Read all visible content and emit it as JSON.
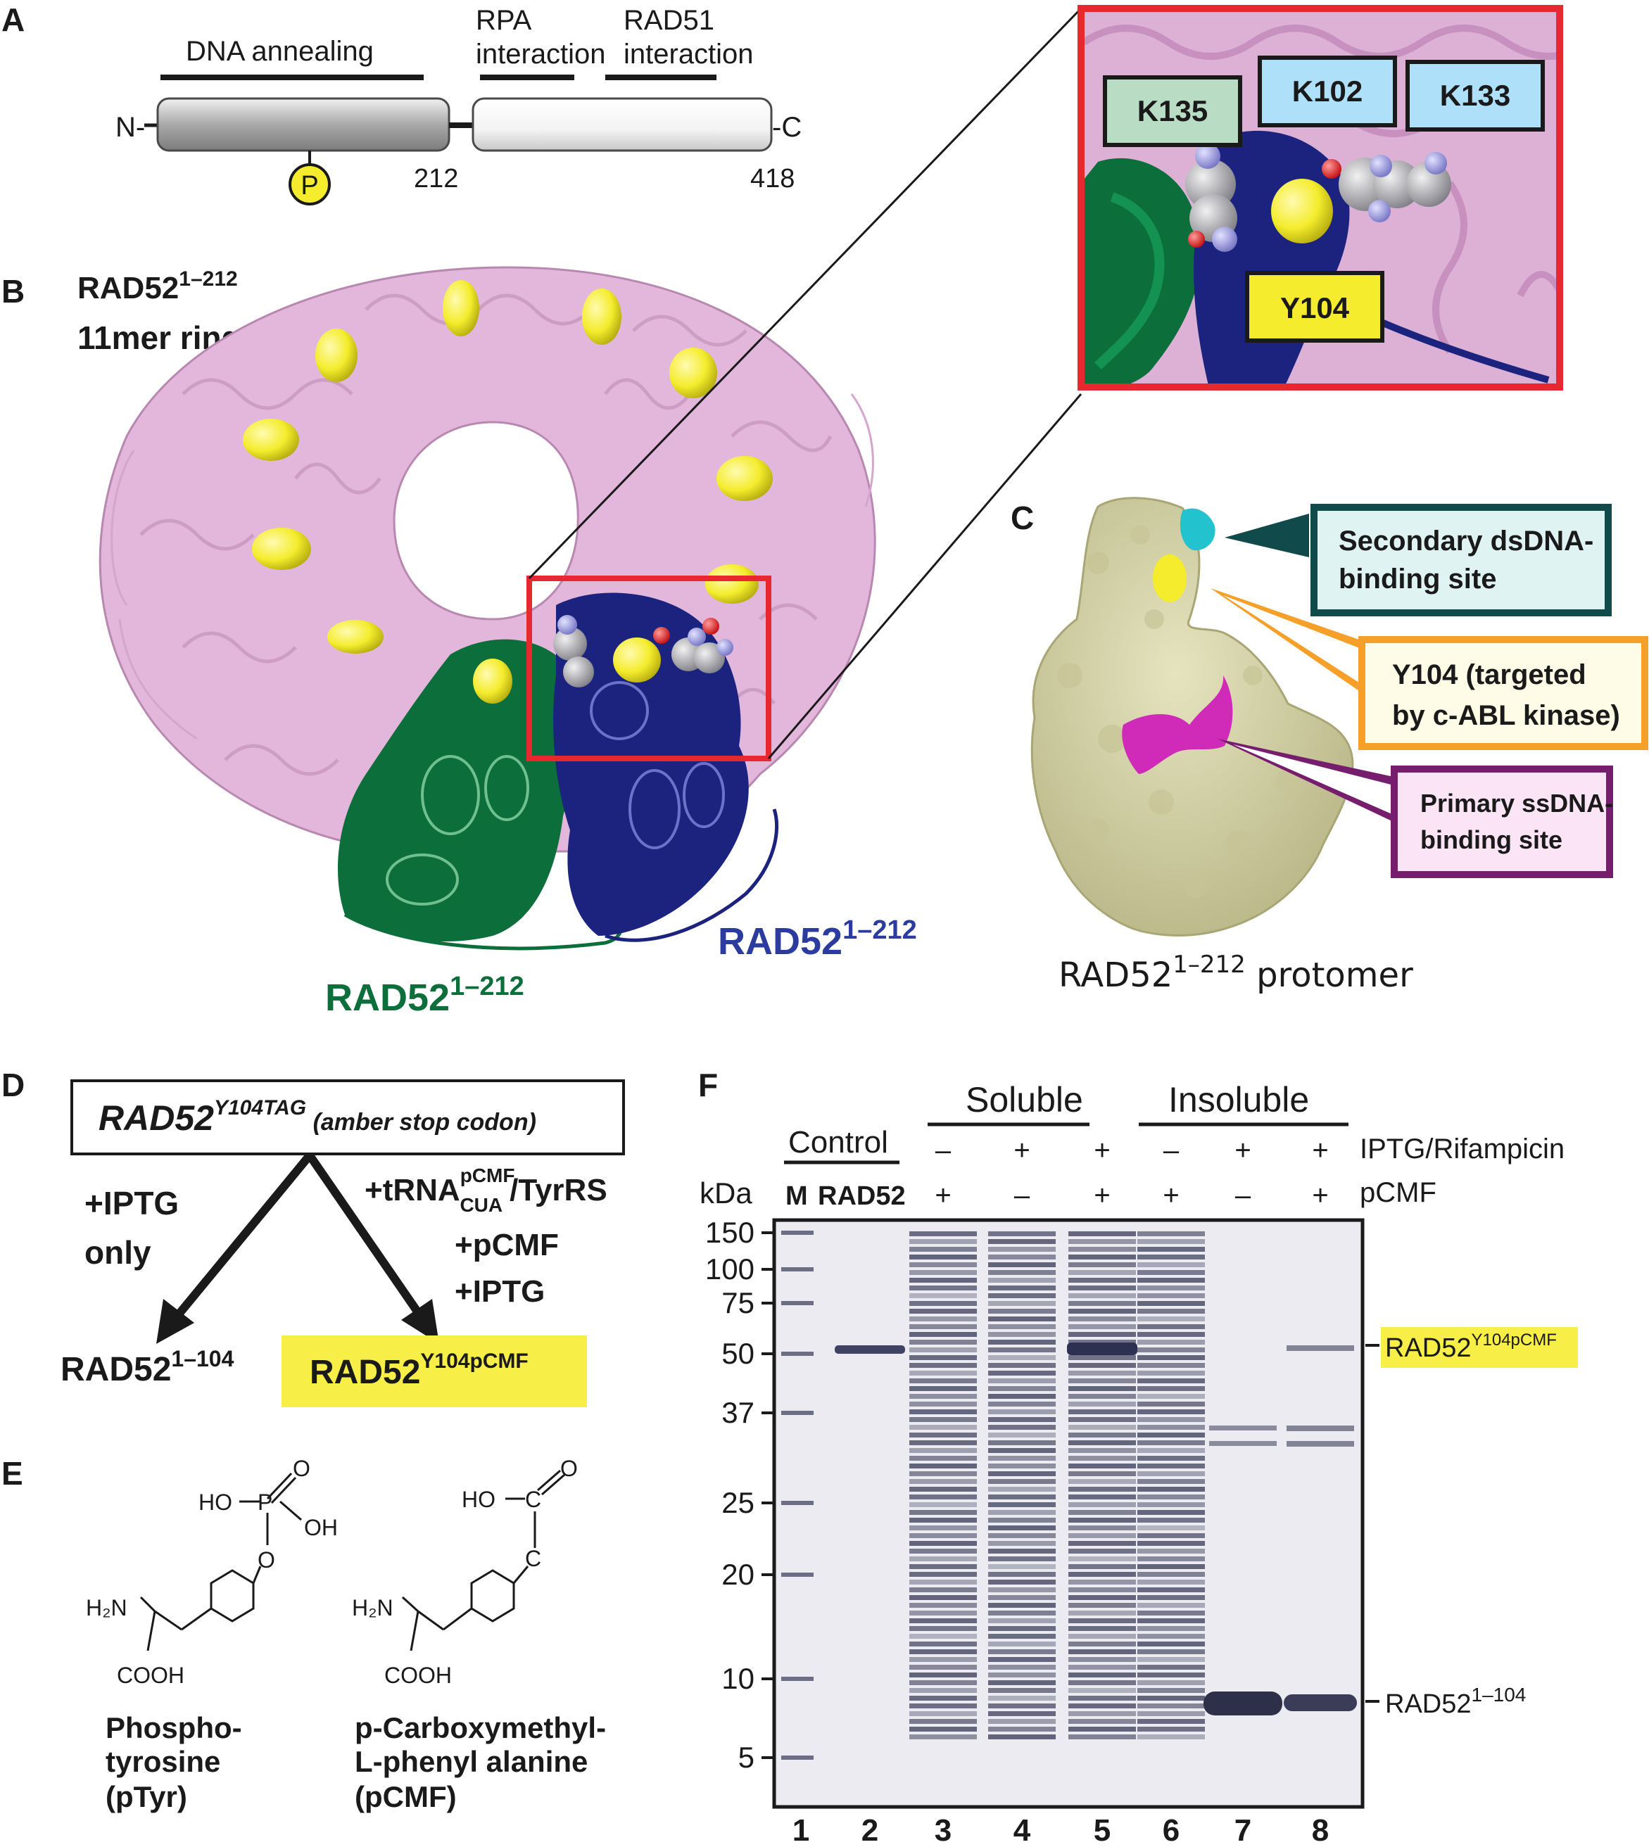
{
  "panel_labels": {
    "a": "A",
    "b": "B",
    "c": "C",
    "d": "D",
    "e": "E",
    "f": "F"
  },
  "panel_a": {
    "dna_annealing": "DNA annealing",
    "rpa_1": "RPA",
    "rpa_2": "interaction",
    "rad51_1": "RAD51",
    "rad51_2": "interaction",
    "n_term": "N-",
    "c_term": "-C",
    "phospho": "P",
    "pos_212": "212",
    "pos_418": "418"
  },
  "panel_b": {
    "title_base": "RAD52",
    "title_sup": "1–212",
    "title_line2": "11mer ring",
    "green_base": "RAD52",
    "green_sup": "1–212",
    "blue_base": "RAD52",
    "blue_sup": "1–212",
    "zoom_labels": {
      "k135": "K135",
      "k102": "K102",
      "k133": "K133",
      "y104": "Y104"
    }
  },
  "panel_c": {
    "callout_1_line1": "Secondary dsDNA-",
    "callout_1_line2": "binding site",
    "callout_2_line1": "Y104 (targeted",
    "callout_2_line2": "by c-ABL kinase)",
    "callout_3_line1": "Primary ssDNA-",
    "callout_3_line2": "binding site",
    "caption_base": "RAD52",
    "caption_sup": "1–212",
    "caption_rest": " protomer"
  },
  "panel_d": {
    "box_base": "RAD52",
    "box_sup": "Y104TAG",
    "box_rest": " (amber stop codon)",
    "left_1": "+IPTG",
    "left_2": "only",
    "right_trna": "+tRNA",
    "right_sup": "pCMF",
    "right_sub": "CUA",
    "right_rest": "/TyrRS",
    "right_2": "+pCMF",
    "right_3": "+IPTG",
    "out_left_base": "RAD52",
    "out_left_sup": "1–104",
    "out_right_base": "RAD52",
    "out_right_sup": "Y104pCMF"
  },
  "panel_e": {
    "ptyr_ho": "HO",
    "ptyr_p": "P",
    "ptyr_o_top": "O",
    "ptyr_oh": "OH",
    "ptyr_o": "O",
    "ptyr_h2n": "H₂N",
    "ptyr_cooh": "COOH",
    "pcmf_ho": "HO",
    "pcmf_c": "C",
    "pcmf_o_top": "O",
    "pcmf_c2": "C",
    "pcmf_h2n": "H₂N",
    "pcmf_cooh": "COOH",
    "name_1_l1": "Phospho-",
    "name_1_l2": "tyrosine",
    "name_1_l3": "(pTyr)",
    "name_2_l1": "p-Carboxymethyl-",
    "name_2_l2": "L-phenyl alanine",
    "name_2_l3": "(pCMF)"
  },
  "panel_f": {
    "group_soluble": "Soluble",
    "group_insoluble": "Insoluble",
    "control": "Control",
    "kda": "kDa",
    "m": "M",
    "rad52": "RAD52",
    "row_iptg": "IPTG/Rifampicin",
    "row_pcmf": "pCMF",
    "iptg_signs": [
      "–",
      "+",
      "+",
      "–",
      "+",
      "+"
    ],
    "pcmf_signs": [
      "+",
      "–",
      "+",
      "+",
      "–",
      "+"
    ],
    "mw_markers": [
      "150",
      "100",
      "75",
      "50",
      "37",
      "25",
      "20",
      "10",
      "5"
    ],
    "lanes": [
      "1",
      "2",
      "3",
      "4",
      "5",
      "6",
      "7",
      "8"
    ],
    "band_upper_base": "RAD52",
    "band_upper_sup": "Y104pCMF",
    "band_lower_base": "RAD52",
    "band_lower_sup": "1–104"
  },
  "colors": {
    "pink": "#e3b7dc",
    "yellow": "#f4ec2c",
    "green": "#0c6e3a",
    "navy": "#1c237f",
    "red_box": "#e8282f",
    "surface": "#d6d4a7",
    "magenta": "#cf2ab8",
    "cyan": "#22c2cf",
    "highlight": "#f8ee48",
    "callout_teal": "#114a4a",
    "callout_orange": "#f6a02a",
    "callout_purple": "#761d6e",
    "gel_bg": "#ebebf1",
    "band": "#4a4c66"
  }
}
